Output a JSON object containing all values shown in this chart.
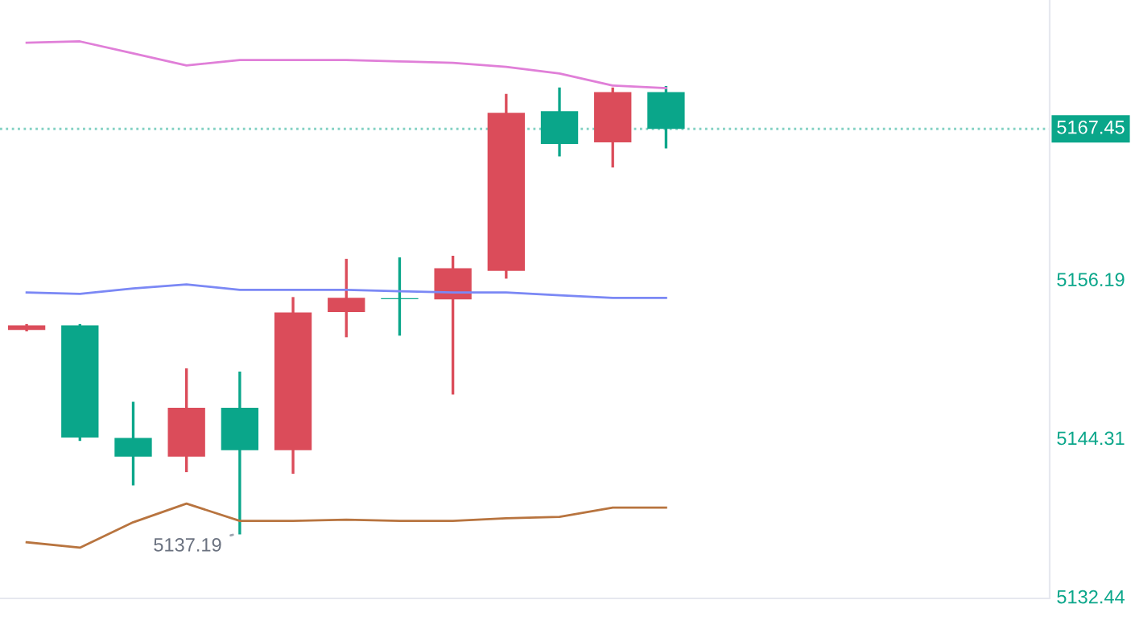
{
  "chart_data": {
    "type": "candlestick",
    "categories": [
      null,
      null,
      null,
      null,
      null,
      null,
      null,
      null,
      null,
      null,
      null,
      null,
      null
    ],
    "ohlc": [
      [
        5152.39,
        5152.74,
        5152.39,
        5152.74
      ],
      [
        5152.74,
        5152.74,
        5144.19,
        5144.35
      ],
      [
        5144.31,
        5146.92,
        5140.86,
        5142.92
      ],
      [
        5142.92,
        5149.42,
        5141.85,
        5146.57
      ],
      [
        5146.57,
        5149.18,
        5137.19,
        5143.39
      ],
      [
        5143.39,
        5154.76,
        5141.73,
        5153.7
      ],
      [
        5153.73,
        5157.62,
        5151.95,
        5154.8
      ],
      [
        5154.78,
        5157.73,
        5152.07,
        5154.7
      ],
      [
        5154.68,
        5157.85,
        5147.67,
        5157.02
      ],
      [
        5156.82,
        5169.97,
        5156.34,
        5168.66
      ],
      [
        5168.78,
        5170.45,
        5165.49,
        5166.32
      ],
      [
        5166.44,
        5170.45,
        5164.66,
        5170.21
      ],
      [
        5170.21,
        5170.56,
        5166.09,
        5167.45
      ]
    ],
    "colors": [
      "#db4c5a",
      "#0aa68a",
      "#0aa68a",
      "#db4c5a",
      "#0aa68a",
      "#db4c5a",
      "#db4c5a",
      "#0aa68a",
      "#db4c5a",
      "#db4c5a",
      "#0aa68a",
      "#db4c5a",
      "#0aa68a"
    ],
    "series": [
      {
        "type": "line",
        "color": "#e07fd8",
        "values": [
          5173.9,
          5174.0,
          5173.1,
          5172.2,
          5172.6,
          5172.6,
          5172.6,
          5172.5,
          5172.4,
          5172.1,
          5171.6,
          5170.7,
          5170.5
        ]
      },
      {
        "type": "line",
        "color": "#7b88f5",
        "values": [
          5155.2,
          5155.1,
          5155.5,
          5155.8,
          5155.4,
          5155.4,
          5155.4,
          5155.3,
          5155.2,
          5155.2,
          5155.0,
          5154.8,
          5154.8
        ]
      },
      {
        "type": "line",
        "color": "#b8743f",
        "values": [
          5136.5,
          5136.1,
          5138.0,
          5139.4,
          5138.1,
          5138.1,
          5138.2,
          5138.1,
          5138.1,
          5138.3,
          5138.4,
          5139.1,
          5139.1
        ]
      }
    ],
    "ylim": [
      5132.3,
      5177.1
    ],
    "yticks": [
      5132.44,
      5144.31,
      5156.19
    ],
    "tick_labels": "y",
    "grid": false,
    "ref_lines": [
      {
        "axis": "y",
        "value": 5167.45,
        "label": "5167.45",
        "color": "#0aa68a",
        "line_style": "dotted"
      }
    ],
    "annotations": [
      "5137.19"
    ]
  }
}
